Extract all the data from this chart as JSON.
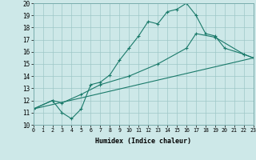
{
  "xlabel": "Humidex (Indice chaleur)",
  "xlim": [
    0,
    23
  ],
  "ylim": [
    10,
    20
  ],
  "xticks": [
    0,
    1,
    2,
    3,
    4,
    5,
    6,
    7,
    8,
    9,
    10,
    11,
    12,
    13,
    14,
    15,
    16,
    17,
    18,
    19,
    20,
    21,
    22,
    23
  ],
  "yticks": [
    10,
    11,
    12,
    13,
    14,
    15,
    16,
    17,
    18,
    19,
    20
  ],
  "bg_color": "#cde8e8",
  "line_color": "#1a7a6a",
  "line1_x": [
    0,
    2,
    3,
    4,
    5,
    6,
    7,
    8,
    9,
    10,
    11,
    12,
    13,
    14,
    15,
    16,
    17,
    18,
    19,
    20,
    22,
    23
  ],
  "line1_y": [
    11.3,
    12.0,
    11.0,
    10.5,
    11.3,
    13.3,
    13.5,
    14.1,
    15.3,
    16.3,
    17.3,
    18.5,
    18.3,
    19.3,
    19.5,
    20.0,
    19.0,
    17.5,
    17.3,
    16.3,
    15.8,
    15.5
  ],
  "line2_x": [
    0,
    2,
    3,
    5,
    7,
    10,
    13,
    16,
    17,
    19,
    22,
    23
  ],
  "line2_y": [
    11.3,
    12.0,
    11.8,
    12.5,
    13.3,
    14.0,
    15.0,
    16.3,
    17.5,
    17.2,
    15.8,
    15.5
  ],
  "line3_x": [
    0,
    23
  ],
  "line3_y": [
    11.3,
    15.5
  ]
}
